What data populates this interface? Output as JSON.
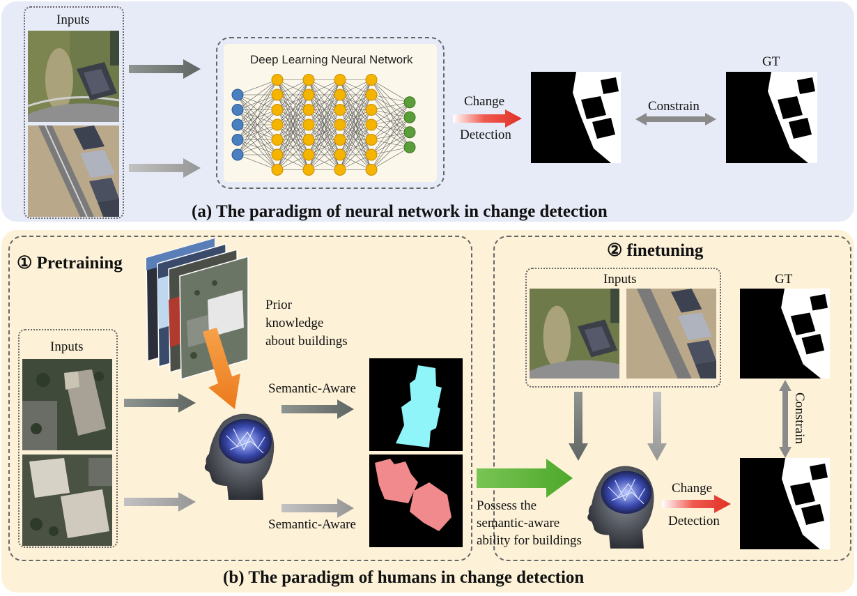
{
  "panel_a": {
    "inputs_label": "Inputs",
    "network_title": "Deep Learning Neural Network",
    "change_label": "Change",
    "detection_label": "Detection",
    "constrain_label": "Constrain",
    "gt_label": "GT",
    "caption": "(a) The paradigm of neural network in change detection"
  },
  "panel_b": {
    "pretraining_title": "① Pretraining",
    "finetuning_title": "② finetuning",
    "inputs_left_label": "Inputs",
    "prior_knowledge": [
      "Prior",
      "knowledge",
      "about buildings"
    ],
    "semantic_aware_top": "Semantic-Aware",
    "semantic_aware_bottom": "Semantic-Aware",
    "possess_text": [
      "Possess the",
      "semantic-aware",
      "ability for buildings"
    ],
    "inputs_right_label": "Inputs",
    "gt_label": "GT",
    "constrain_label": "Constrain",
    "change_label": "Change",
    "detection_label": "Detection",
    "caption": "(b) The paradigm of humans in change detection"
  },
  "colors": {
    "panel_a_bg": "#e7ebf7",
    "panel_b_bg": "#fdf2d8",
    "input_node": "#4a7fc0",
    "hidden_node": "#f5b400",
    "output_node": "#5a9e3a",
    "change_arrow": "#e53a2f",
    "prior_arrow": "#f08a24",
    "possess_arrow": "#5db135",
    "mask_cyan": "#8ff5f8",
    "mask_pink": "#f08a8c"
  }
}
